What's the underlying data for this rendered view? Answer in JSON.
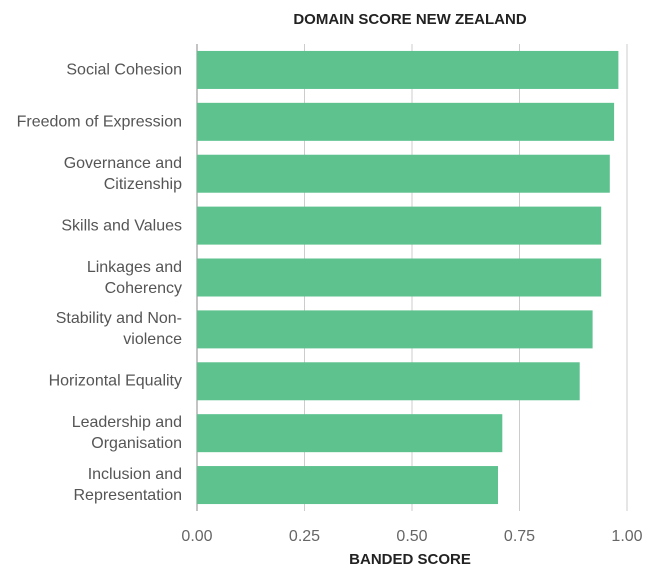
{
  "chart_data": {
    "type": "bar",
    "orientation": "horizontal",
    "title": "DOMAIN SCORE NEW ZEALAND",
    "x_label": "BANDED SCORE",
    "categories": [
      "Social Cohesion",
      "Freedom of Expression",
      "Governance and Citizenship",
      "Skills and Values",
      "Linkages and Coherency",
      "Stability and Non-violence",
      "Horizontal Equality",
      "Leadership and Organisation",
      "Inclusion and Representation"
    ],
    "values": [
      0.98,
      0.97,
      0.96,
      0.94,
      0.94,
      0.92,
      0.89,
      0.71,
      0.7
    ],
    "color": "#5ec28f",
    "xlim": [
      0,
      1.05
    ],
    "xticks": [
      {
        "value": 0,
        "label": "0.00"
      },
      {
        "value": 0.25,
        "label": "0.25"
      },
      {
        "value": 0.5,
        "label": "0.50"
      },
      {
        "value": 0.75,
        "label": "0.75"
      },
      {
        "value": 1,
        "label": "1.00"
      }
    ],
    "grid": true
  }
}
